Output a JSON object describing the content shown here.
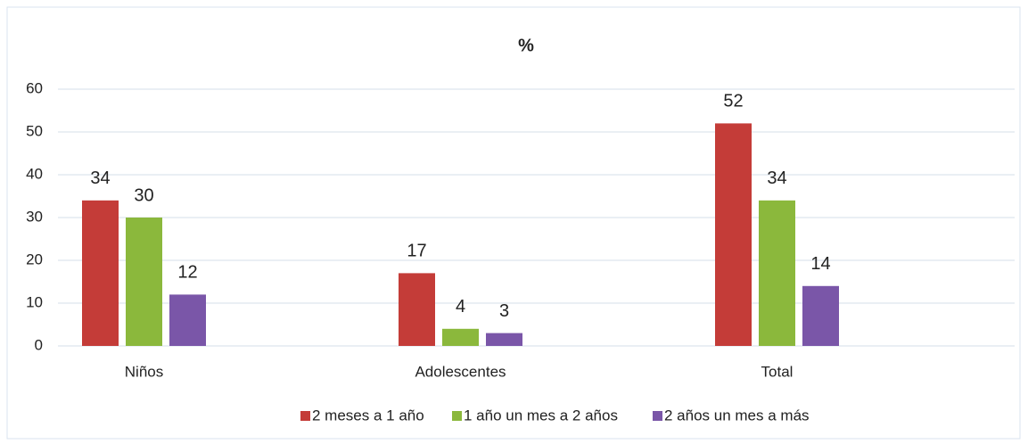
{
  "chart_data": {
    "type": "bar",
    "title": "%",
    "categories": [
      "Niños",
      "Adolescentes",
      "Total"
    ],
    "series": [
      {
        "name": "2 meses a 1 año",
        "color": "#c43c38",
        "values": [
          34,
          17,
          52
        ]
      },
      {
        "name": "1 año un mes a 2 años",
        "color": "#8bb83c",
        "values": [
          30,
          4,
          34
        ]
      },
      {
        "name": "2 años un mes a más",
        "color": "#7a56a8",
        "values": [
          12,
          3,
          14
        ]
      }
    ],
    "ylim": [
      0,
      60
    ],
    "yticks": [
      0,
      10,
      20,
      30,
      40,
      50,
      60
    ],
    "grid": true,
    "legend": "bottom"
  }
}
